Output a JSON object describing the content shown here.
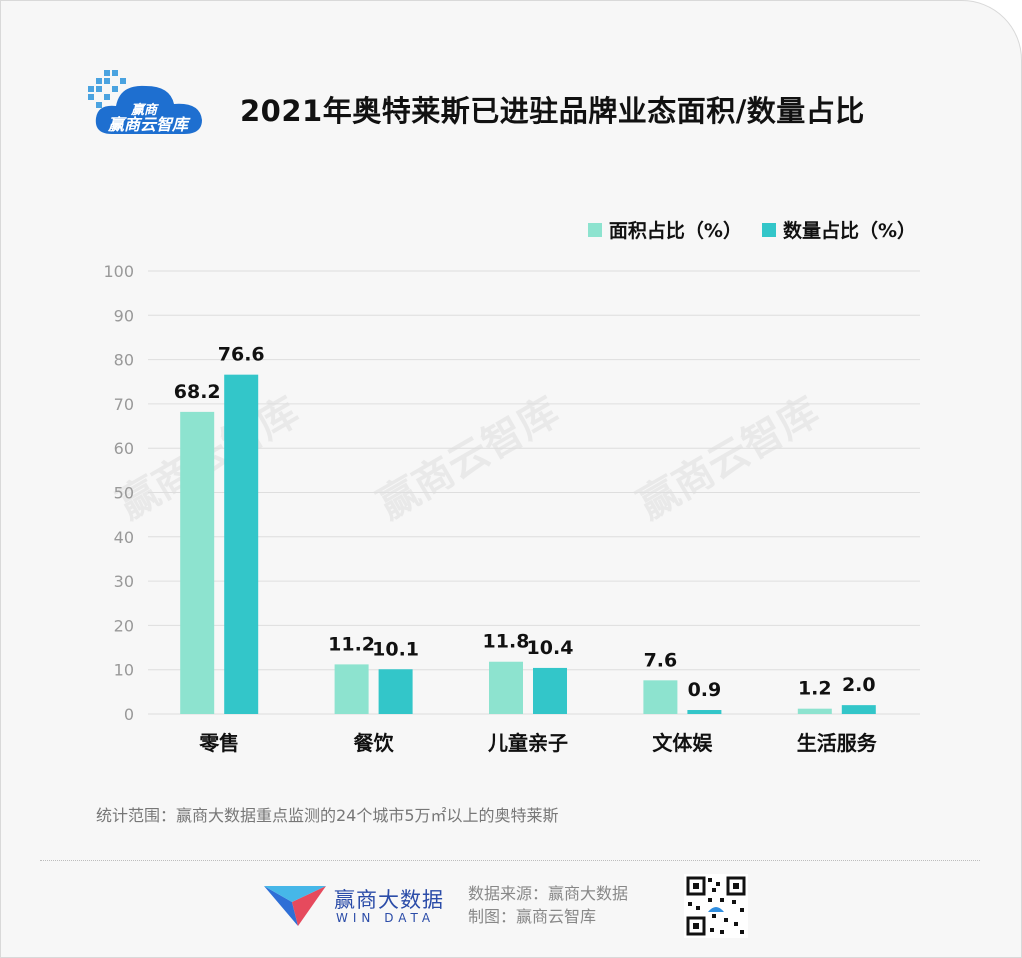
{
  "header": {
    "title": "2021年奥特莱斯已进驻品牌业态面积/数量占比",
    "logo_text": "赢商云智库"
  },
  "colors": {
    "area": "#8de3cf",
    "count": "#33c6c9",
    "grid": "#dedede",
    "axis_text": "#999999"
  },
  "chart_data": {
    "type": "bar",
    "title": "2021年奥特莱斯已进驻品牌业态面积/数量占比",
    "categories": [
      "零售",
      "餐饮",
      "儿童亲子",
      "文体娱",
      "生活服务"
    ],
    "series": [
      {
        "name": "面积占比（%）",
        "values": [
          68.2,
          11.2,
          11.8,
          7.6,
          1.2
        ]
      },
      {
        "name": "数量占比（%）",
        "values": [
          76.6,
          10.1,
          10.4,
          0.9,
          2.0
        ]
      }
    ],
    "value_labels": [
      [
        "68.2",
        "11.2",
        "11.8",
        "7.6",
        "1.2"
      ],
      [
        "76.6",
        "10.1",
        "10.4",
        "0.9",
        "2.0"
      ]
    ],
    "yticks": [
      0,
      10,
      20,
      30,
      40,
      50,
      60,
      70,
      80,
      90,
      100
    ],
    "ylim": [
      0,
      100
    ],
    "grid": true,
    "legend_position": "top-right",
    "watermark": "赢商云智库"
  },
  "footer": {
    "scope_note": "统计范围：赢商大数据重点监测的24个城市5万㎡以上的奥特莱斯",
    "brand_name": "赢商大数据",
    "brand_en": "WIN DATA",
    "source_line": "数据来源：赢商大数据",
    "made_by_line": "制图：赢商云智库"
  }
}
